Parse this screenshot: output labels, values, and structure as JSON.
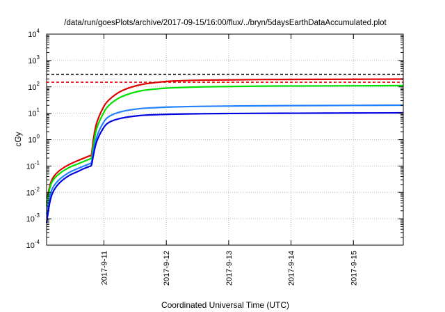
{
  "chart_data": {
    "type": "line",
    "title": "/data/run/goesPlots/archive/2017-09-15/16:00/flux/../bryn/5daysEarthDataAccumulated.plot",
    "xlabel": "Coordinated Universal Time (UTC)",
    "ylabel": "cGy",
    "yscale": "log",
    "ylim": [
      0.0001,
      10000
    ],
    "xlim": [
      0,
      5.72
    ],
    "grid": true,
    "x_ticks": [
      {
        "x": 0.92,
        "label": "2017-9-11"
      },
      {
        "x": 1.92,
        "label": "2017-9-12"
      },
      {
        "x": 2.92,
        "label": "2017-9-13"
      },
      {
        "x": 3.92,
        "label": "2017-9-14"
      },
      {
        "x": 4.92,
        "label": "2017-9-15"
      }
    ],
    "y_ticks": [
      {
        "value": 0.0001,
        "base": "10",
        "exp": "-4"
      },
      {
        "value": 0.001,
        "base": "10",
        "exp": "-3"
      },
      {
        "value": 0.01,
        "base": "10",
        "exp": "-2"
      },
      {
        "value": 0.1,
        "base": "10",
        "exp": "-1"
      },
      {
        "value": 1,
        "base": "10",
        "exp": "0"
      },
      {
        "value": 10,
        "base": "10",
        "exp": "1"
      },
      {
        "value": 100,
        "base": "10",
        "exp": "2"
      },
      {
        "value": 1000,
        "base": "10",
        "exp": "3"
      },
      {
        "value": 10000,
        "base": "10",
        "exp": "4"
      }
    ],
    "thresholds": [
      {
        "value": 300,
        "color": "#000000",
        "dashed": true
      },
      {
        "value": 150,
        "color": "#e00000",
        "dashed": true
      }
    ],
    "x": [
      0.0,
      0.05,
      0.1,
      0.2,
      0.35,
      0.5,
      0.6,
      0.68,
      0.72,
      0.75,
      0.8,
      0.9,
      1.0,
      1.2,
      1.5,
      1.8,
      2.0,
      2.5,
      3.0,
      3.5,
      4.0,
      4.5,
      5.0,
      5.5,
      5.72
    ],
    "series": [
      {
        "color": "#e00000",
        "values": [
          0.004,
          0.017,
          0.035,
          0.065,
          0.11,
          0.16,
          0.2,
          0.24,
          0.28,
          1.0,
          4.0,
          15,
          32,
          70,
          120,
          150,
          165,
          180,
          185,
          190,
          192,
          194,
          195,
          197,
          198
        ]
      },
      {
        "color": "#00e000",
        "values": [
          0.003,
          0.014,
          0.028,
          0.05,
          0.085,
          0.12,
          0.15,
          0.18,
          0.21,
          0.6,
          2.5,
          9,
          20,
          42,
          70,
          85,
          92,
          100,
          104,
          107,
          108,
          109,
          110,
          111,
          112
        ]
      },
      {
        "color": "#2080ff",
        "values": [
          0.0015,
          0.007,
          0.015,
          0.03,
          0.055,
          0.08,
          0.1,
          0.12,
          0.14,
          0.35,
          1.2,
          4.0,
          7.5,
          11.5,
          15,
          16.5,
          17.3,
          18.3,
          18.8,
          19.2,
          19.5,
          19.7,
          19.9,
          20.1,
          20.2
        ]
      },
      {
        "color": "#0000e0",
        "values": [
          0.0007,
          0.004,
          0.01,
          0.022,
          0.042,
          0.062,
          0.08,
          0.095,
          0.11,
          0.25,
          0.8,
          2.5,
          4.5,
          6.5,
          8.2,
          8.9,
          9.2,
          9.6,
          9.8,
          9.95,
          10.05,
          10.15,
          10.25,
          10.35,
          10.4
        ]
      }
    ]
  }
}
